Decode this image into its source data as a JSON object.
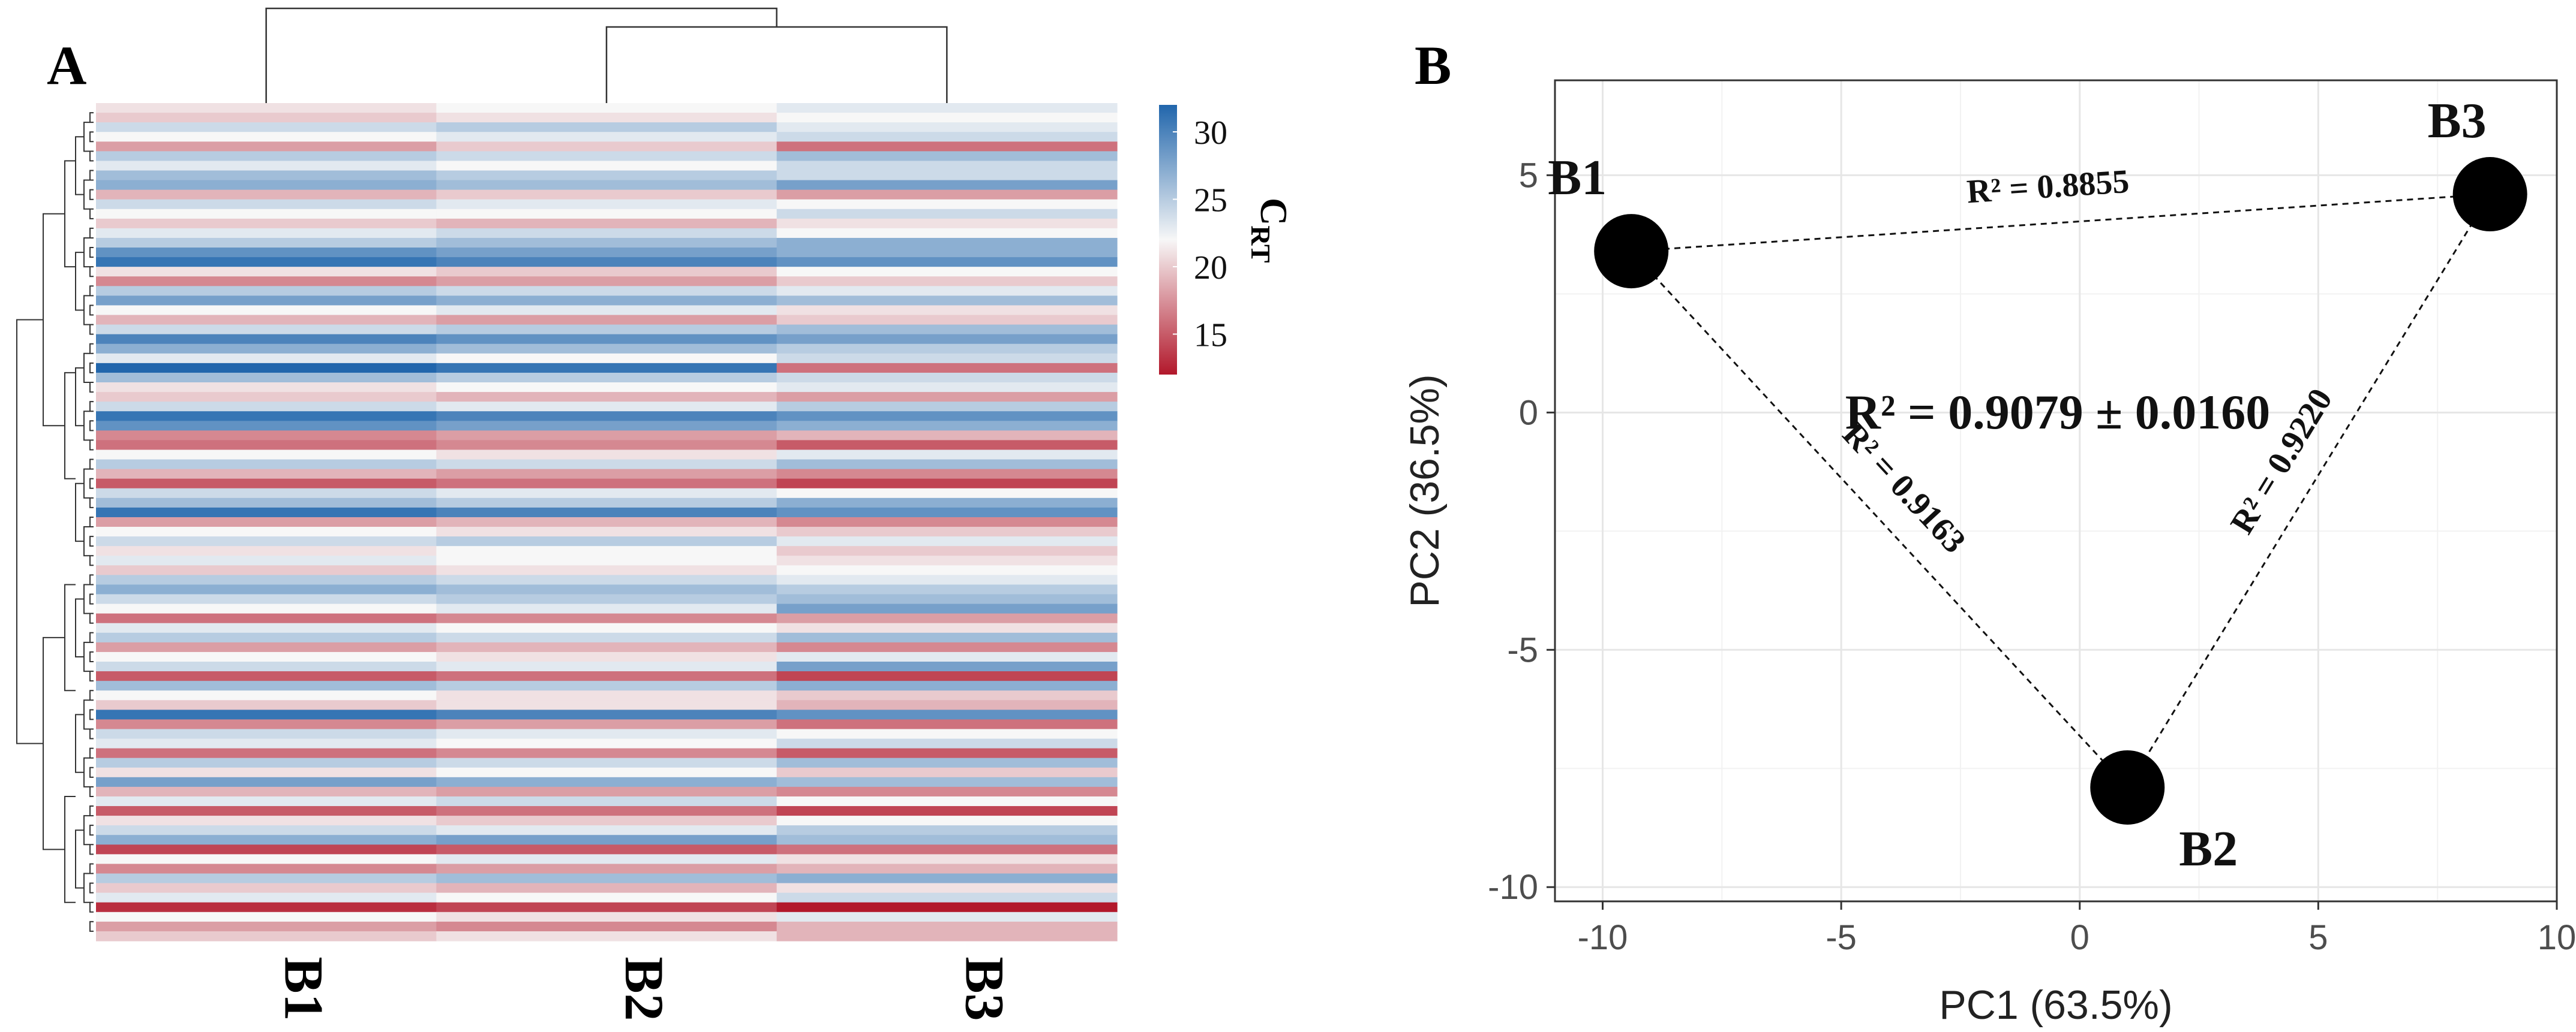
{
  "chart_data": [
    {
      "panel_label": "A",
      "type": "heatmap",
      "columns": [
        "B1",
        "B2",
        "B3"
      ],
      "legend": {
        "title": "C",
        "title_subscript": "RT",
        "ticks": [
          30,
          25,
          20,
          15
        ],
        "range": [
          12,
          32
        ],
        "low_color": "#b2182b",
        "mid_color": "#f7f7f7",
        "high_color": "#2166ac"
      },
      "column_dendrogram": "B1 | (B2, B3)",
      "values": [
        [
          21,
          22,
          23
        ],
        [
          20,
          21,
          22
        ],
        [
          24,
          25,
          23
        ],
        [
          22,
          23,
          24
        ],
        [
          18,
          20,
          16
        ],
        [
          25,
          24,
          26
        ],
        [
          23,
          22,
          24
        ],
        [
          26,
          25,
          24
        ],
        [
          27,
          26,
          28
        ],
        [
          19,
          20,
          18
        ],
        [
          24,
          23,
          22
        ],
        [
          22,
          22,
          24
        ],
        [
          20,
          19,
          21
        ],
        [
          23,
          24,
          22
        ],
        [
          25,
          26,
          27
        ],
        [
          29,
          28,
          27
        ],
        [
          31,
          30,
          29
        ],
        [
          21,
          20,
          22
        ],
        [
          17,
          18,
          20
        ],
        [
          25,
          24,
          23
        ],
        [
          28,
          27,
          26
        ],
        [
          22,
          23,
          21
        ],
        [
          19,
          18,
          20
        ],
        [
          24,
          25,
          26
        ],
        [
          30,
          29,
          28
        ],
        [
          27,
          26,
          25
        ],
        [
          23,
          22,
          24
        ],
        [
          32,
          31,
          16
        ],
        [
          26,
          25,
          24
        ],
        [
          21,
          22,
          23
        ],
        [
          20,
          19,
          18
        ],
        [
          24,
          23,
          25
        ],
        [
          31,
          30,
          29
        ],
        [
          29,
          28,
          27
        ],
        [
          17,
          18,
          19
        ],
        [
          16,
          17,
          15
        ],
        [
          22,
          21,
          23
        ],
        [
          25,
          24,
          26
        ],
        [
          19,
          18,
          17
        ],
        [
          15,
          16,
          14
        ],
        [
          24,
          23,
          22
        ],
        [
          26,
          25,
          27
        ],
        [
          31,
          30,
          29
        ],
        [
          18,
          19,
          17
        ],
        [
          22,
          21,
          20
        ],
        [
          24,
          25,
          23
        ],
        [
          21,
          22,
          20
        ],
        [
          23,
          22,
          21
        ],
        [
          20,
          21,
          22
        ],
        [
          25,
          24,
          23
        ],
        [
          27,
          26,
          25
        ],
        [
          24,
          25,
          26
        ],
        [
          22,
          23,
          28
        ],
        [
          16,
          17,
          18
        ],
        [
          23,
          22,
          21
        ],
        [
          25,
          24,
          26
        ],
        [
          18,
          19,
          17
        ],
        [
          22,
          21,
          23
        ],
        [
          24,
          23,
          28
        ],
        [
          15,
          16,
          14
        ],
        [
          26,
          25,
          27
        ],
        [
          22,
          21,
          20
        ],
        [
          20,
          21,
          19
        ],
        [
          31,
          30,
          29
        ],
        [
          17,
          18,
          16
        ],
        [
          24,
          23,
          22
        ],
        [
          23,
          22,
          24
        ],
        [
          16,
          17,
          15
        ],
        [
          25,
          24,
          26
        ],
        [
          21,
          22,
          20
        ],
        [
          28,
          27,
          26
        ],
        [
          19,
          18,
          17
        ],
        [
          23,
          24,
          22
        ],
        [
          15,
          16,
          14
        ],
        [
          21,
          20,
          22
        ],
        [
          24,
          23,
          25
        ],
        [
          27,
          28,
          26
        ],
        [
          14,
          15,
          16
        ],
        [
          22,
          23,
          21
        ],
        [
          17,
          18,
          19
        ],
        [
          25,
          26,
          27
        ],
        [
          20,
          19,
          21
        ],
        [
          23,
          22,
          24
        ],
        [
          13,
          14,
          12
        ],
        [
          22,
          21,
          23
        ],
        [
          18,
          17,
          19
        ],
        [
          20,
          21,
          19
        ]
      ]
    },
    {
      "panel_label": "B",
      "type": "scatter",
      "xlabel": "PC1 (63.5%)",
      "ylabel": "PC2 (36.5%)",
      "xlim": [
        -11,
        10
      ],
      "ylim": [
        -10.3,
        7
      ],
      "xticks": [
        -10,
        -5,
        0,
        5,
        10
      ],
      "yticks": [
        5,
        0,
        -5,
        -10
      ],
      "xtick_labels": [
        "-10",
        "-5",
        "0",
        "5",
        "10"
      ],
      "ytick_labels": [
        "5",
        "0",
        "-5",
        "-10"
      ],
      "grid": true,
      "points": [
        {
          "name": "B1",
          "x": -9.4,
          "y": 3.4
        },
        {
          "name": "B2",
          "x": 1.0,
          "y": -7.9
        },
        {
          "name": "B3",
          "x": 8.6,
          "y": 4.6
        }
      ],
      "edges": [
        {
          "from": "B1",
          "to": "B3",
          "label": "R² = 0.8855"
        },
        {
          "from": "B1",
          "to": "B2",
          "label": "R² = 0.9163"
        },
        {
          "from": "B3",
          "to": "B2",
          "label": "R² = 0.9220"
        }
      ],
      "annotation": "R² = 0.9079 ± 0.0160"
    }
  ]
}
